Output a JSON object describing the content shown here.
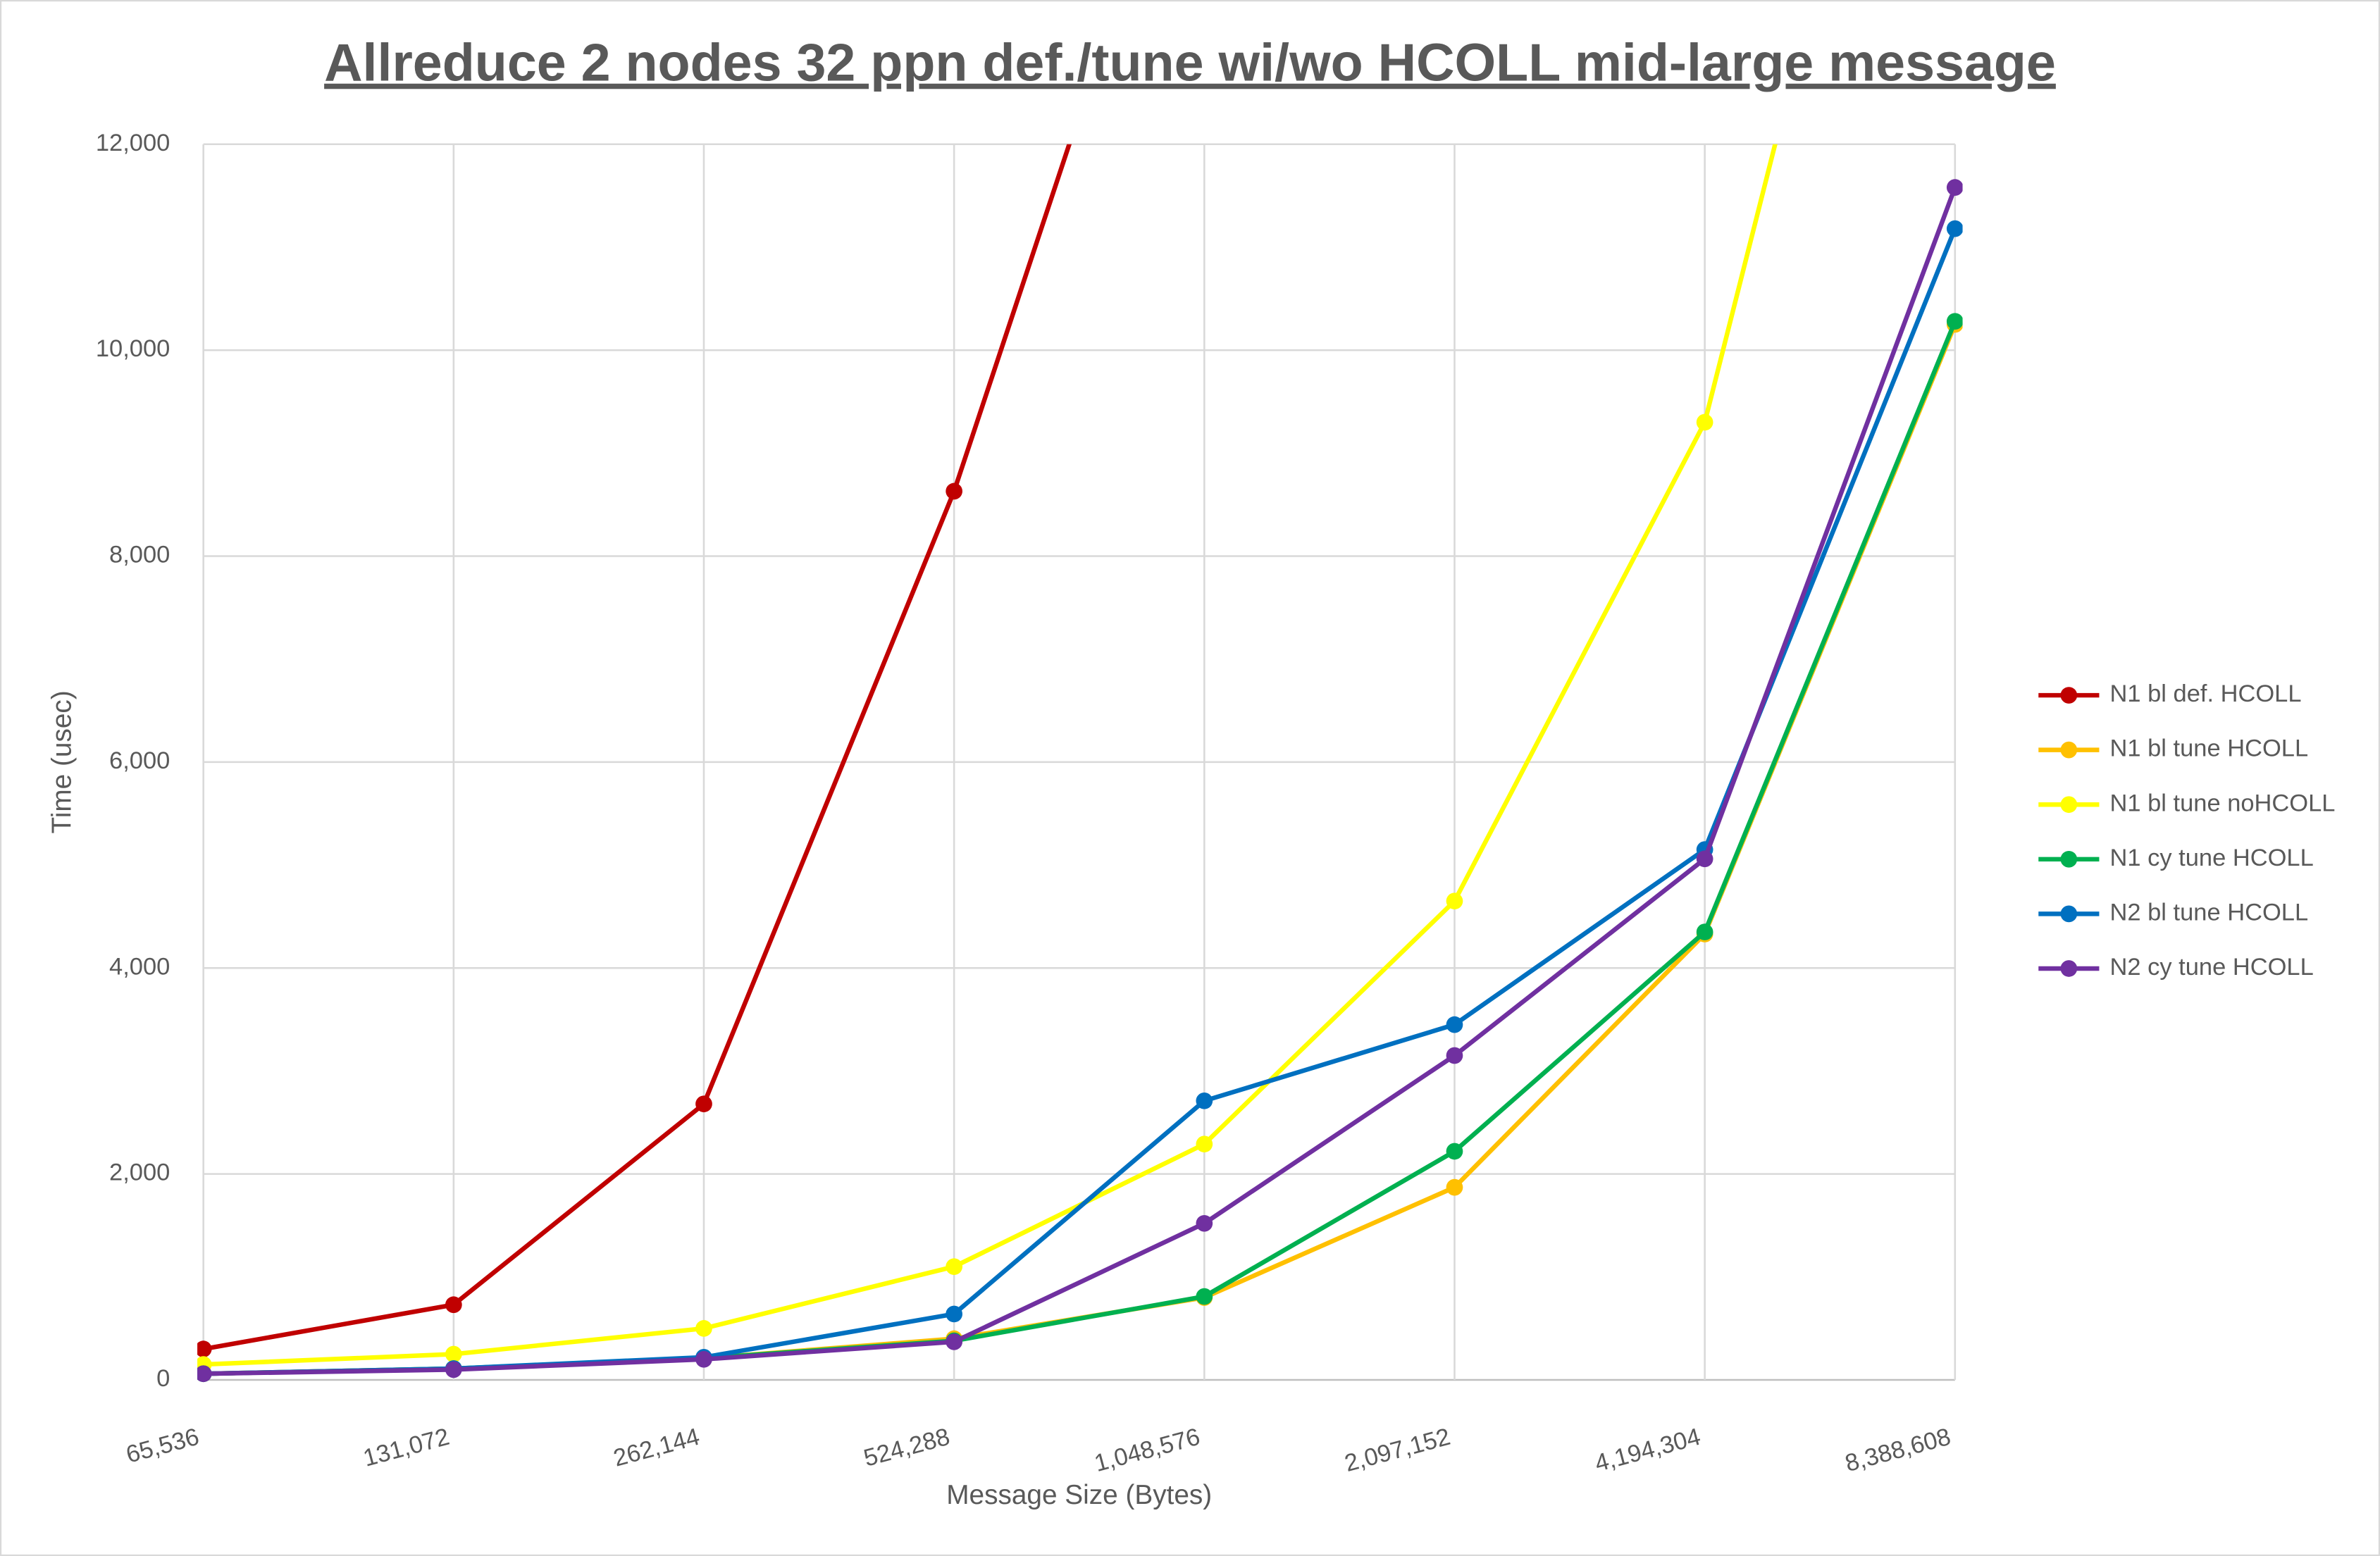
{
  "chart_data": {
    "type": "line",
    "title": "Allreduce 2 nodes 32 ppn def./tune wi/wo HCOLL mid-large message",
    "x_label": "Message Size (Bytes)",
    "y_label": "Time (usec)",
    "categories": [
      "65,536",
      "131,072",
      "262,144",
      "524,288",
      "1,048,576",
      "2,097,152",
      "4,194,304",
      "8,388,608"
    ],
    "ylim": [
      0,
      12000
    ],
    "yticks": [
      0,
      {
        "value": 2000,
        "label": "2,000"
      },
      {
        "value": 4000,
        "label": "4,000"
      },
      {
        "value": 6000,
        "label": "6,000"
      },
      {
        "value": 8000,
        "label": "8,000"
      },
      {
        "value": 10000,
        "label": "10,000"
      },
      {
        "value": 12000,
        "label": "12,000"
      }
    ],
    "grid": true,
    "legend": "right",
    "series": [
      {
        "name": "N1 bl def. HCOLL",
        "color": "#c00000",
        "values": [
          300,
          730,
          2680,
          8630,
          15950,
          null,
          null,
          null
        ]
      },
      {
        "name": "N1 bl tune HCOLL",
        "color": "#ffc000",
        "values": [
          60,
          110,
          210,
          400,
          800,
          1870,
          4330,
          10250
        ]
      },
      {
        "name": "N1 bl tune noHCOLL",
        "color": "#ffff00",
        "values": [
          150,
          250,
          500,
          1100,
          2290,
          4650,
          9300,
          18900
        ]
      },
      {
        "name": "N1 cy tune HCOLL",
        "color": "#00b050",
        "values": [
          60,
          110,
          210,
          380,
          810,
          2220,
          4350,
          10280
        ]
      },
      {
        "name": "N2 bl tune HCOLL",
        "color": "#0070c0",
        "values": [
          60,
          110,
          220,
          640,
          2710,
          3450,
          5150,
          11180
        ]
      },
      {
        "name": "N2 cy tune HCOLL",
        "color": "#7030a0",
        "values": [
          60,
          100,
          200,
          370,
          1520,
          3150,
          5060,
          11580
        ]
      }
    ]
  }
}
